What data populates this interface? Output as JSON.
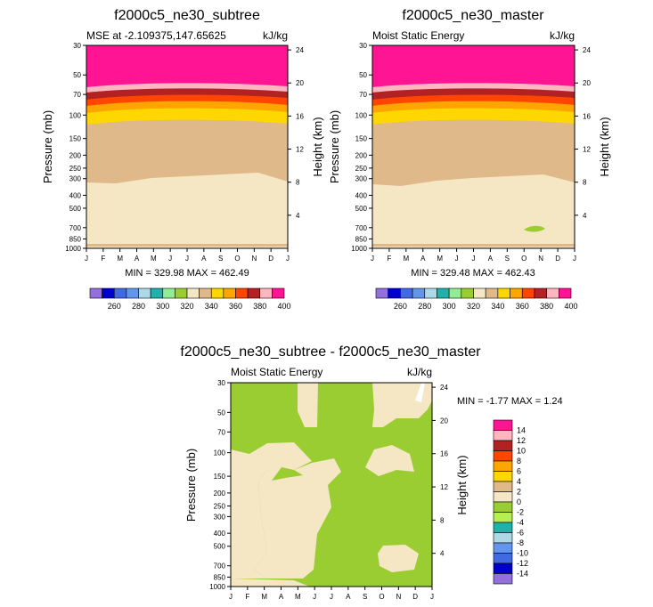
{
  "chart_data": [
    {
      "type": "contour",
      "title": "f2000c5_ne30_subtree",
      "subtitle_left": "MSE at -2.109375,147.65625",
      "subtitle_right": "kJ/kg",
      "ylabel_left": "Pressure (mb)",
      "ylabel_right": "Height (km)",
      "pressure_ticks": [
        "30",
        "50",
        "70",
        "100",
        "150",
        "200",
        "250",
        "300",
        "400",
        "500",
        "700",
        "850",
        "1000"
      ],
      "height_ticks": [
        "24",
        "20",
        "16",
        "12",
        "8",
        "4"
      ],
      "months": [
        "J",
        "F",
        "M",
        "A",
        "M",
        "J",
        "J",
        "A",
        "S",
        "O",
        "N",
        "D",
        "J"
      ],
      "stats": "MIN = 329.98 MAX = 462.49",
      "contour_levels_kJ_kg": {
        "top_band_ge_400_below_hPa": 50,
        "transition_400_to_340_hPa": [
          50,
          100
        ],
        "band_340_to_330_hPa": [
          100,
          300
        ],
        "below_330_hPa": [
          300,
          1000
        ]
      },
      "colorbar_labels": [
        "260",
        "280",
        "300",
        "320",
        "340",
        "360",
        "380",
        "400"
      ]
    },
    {
      "type": "contour",
      "title": "f2000c5_ne30_master",
      "subtitle_left": "Moist Static Energy",
      "subtitle_right": "kJ/kg",
      "ylabel_left": "Pressure (mb)",
      "ylabel_right": "Height (km)",
      "pressure_ticks": [
        "30",
        "50",
        "70",
        "100",
        "150",
        "200",
        "250",
        "300",
        "400",
        "500",
        "700",
        "850",
        "1000"
      ],
      "height_ticks": [
        "24",
        "20",
        "16",
        "12",
        "8",
        "4"
      ],
      "months": [
        "J",
        "F",
        "M",
        "A",
        "M",
        "J",
        "J",
        "A",
        "S",
        "O",
        "N",
        "D",
        "J"
      ],
      "stats": "MIN = 329.48 MAX = 462.43",
      "colorbar_labels": [
        "260",
        "280",
        "300",
        "320",
        "340",
        "360",
        "380",
        "400"
      ]
    },
    {
      "type": "contour",
      "title": "f2000c5_ne30_subtree - f2000c5_ne30_master",
      "subtitle_left": "Moist Static Energy",
      "subtitle_right": "kJ/kg",
      "ylabel_left": "Pressure (mb)",
      "ylabel_right": "Height (km)",
      "pressure_ticks": [
        "30",
        "50",
        "70",
        "100",
        "150",
        "200",
        "250",
        "300",
        "400",
        "500",
        "700",
        "850",
        "1000"
      ],
      "height_ticks": [
        "24",
        "20",
        "16",
        "12",
        "8",
        "4"
      ],
      "months": [
        "J",
        "F",
        "M",
        "A",
        "M",
        "J",
        "J",
        "A",
        "S",
        "O",
        "N",
        "D",
        "J"
      ],
      "stats": "MIN =  -1.77 MAX =  1.24",
      "colorbar_labels": [
        "14",
        "12",
        "10",
        "8",
        "6",
        "4",
        "2",
        "0",
        "-2",
        "-4",
        "-6",
        "-8",
        "-10",
        "-12",
        "-14"
      ]
    }
  ],
  "colors": {
    "mse_palette": [
      "#9370db",
      "#0000cd",
      "#4169e1",
      "#6495ed",
      "#add8e6",
      "#20b2aa",
      "#90ee90",
      "#9acd32",
      "#f5e6c4",
      "#dfb98a",
      "#ffd700",
      "#ffa500",
      "#ff4500",
      "#b22222",
      "#ffb6c1",
      "#ff1493"
    ],
    "diff_palette": [
      "#ff1493",
      "#ffb6c1",
      "#b22222",
      "#ff4500",
      "#ffa500",
      "#ffd700",
      "#dfb98a",
      "#f5e6c4",
      "#9acd32",
      "#b7ee52",
      "#20b2aa",
      "#add8e6",
      "#6495ed",
      "#4169e1",
      "#0000cd",
      "#9370db"
    ]
  }
}
